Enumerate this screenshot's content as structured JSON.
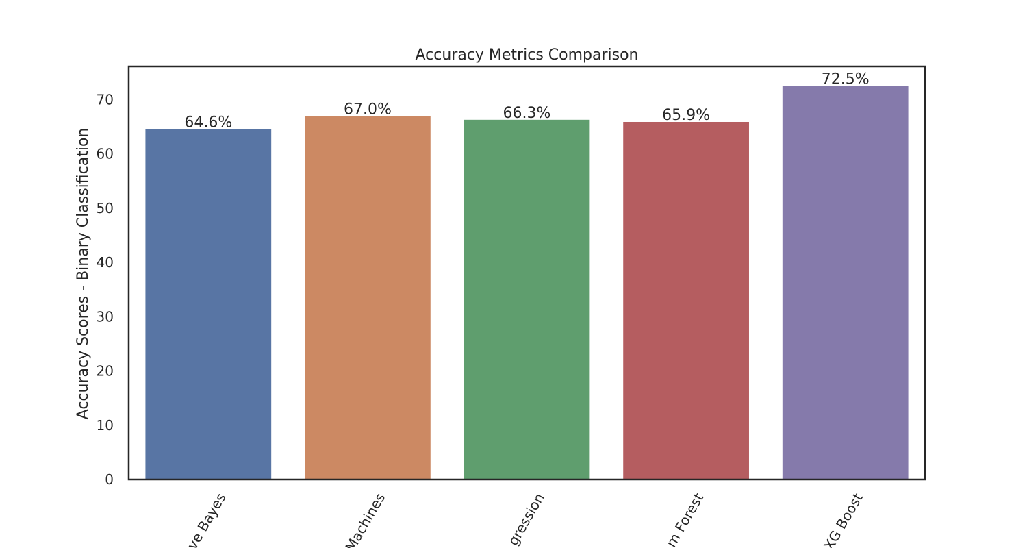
{
  "chart_data": {
    "type": "bar",
    "title": "Accuracy Metrics Comparison",
    "xlabel": "",
    "ylabel": "Accuracy Scores - Binary Classification",
    "categories": [
      "Naive Bayes",
      "Support Vector Machines",
      "Logistic Regression",
      "Random Forest",
      "XG Boost"
    ],
    "visible_tick_labels": [
      "ve Bayes",
      "Machines",
      "gression",
      "m Forest",
      "XG Boost"
    ],
    "values": [
      64.6,
      67.0,
      66.3,
      65.9,
      72.5
    ],
    "value_labels": [
      "64.6%",
      "67.0%",
      "66.3%",
      "65.9%",
      "72.5%"
    ],
    "colors": [
      "#5875a4",
      "#cc8963",
      "#5f9e6e",
      "#b55d60",
      "#857aab"
    ],
    "ylim": [
      0,
      76.125
    ],
    "yticks": [
      0,
      10,
      20,
      30,
      40,
      50,
      60,
      70
    ],
    "grid": false,
    "legend": "none"
  }
}
